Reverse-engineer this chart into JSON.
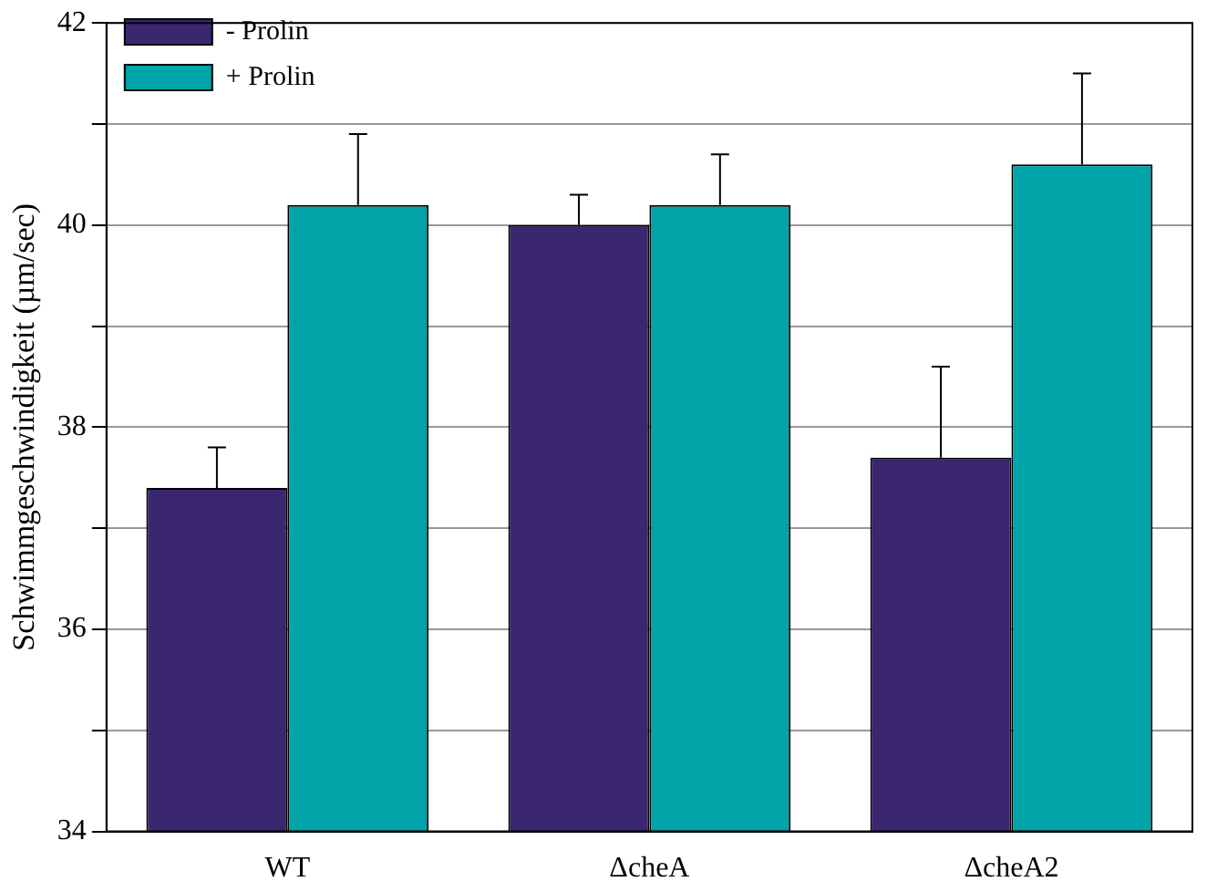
{
  "chart_data": {
    "type": "bar",
    "ylabel": "Schwimmgeschwindigkeit (µm/sec)",
    "categories": [
      "WT",
      "ΔcheA",
      "ΔcheA2"
    ],
    "series": [
      {
        "name": "- Prolin",
        "color": "#3b2670",
        "values": [
          37.4,
          40.0,
          37.7
        ],
        "errors": [
          [
            37.4,
            37.8
          ],
          [
            40.0,
            40.3
          ],
          [
            37.7,
            38.6
          ]
        ]
      },
      {
        "name": "+ Prolin",
        "color": "#00a3a8",
        "values": [
          40.2,
          40.2,
          40.6
        ],
        "errors": [
          [
            40.2,
            40.9
          ],
          [
            40.2,
            40.7
          ],
          [
            40.6,
            41.5
          ]
        ]
      }
    ],
    "ylim": [
      34,
      42
    ],
    "yticks": [
      34,
      {
        "value": 35,
        "label": null
      },
      36,
      {
        "value": 37,
        "label": null
      },
      38,
      {
        "value": 39,
        "label": null
      },
      40,
      {
        "value": 41,
        "label": null
      },
      42
    ],
    "grid": "y",
    "legend": "top left"
  }
}
